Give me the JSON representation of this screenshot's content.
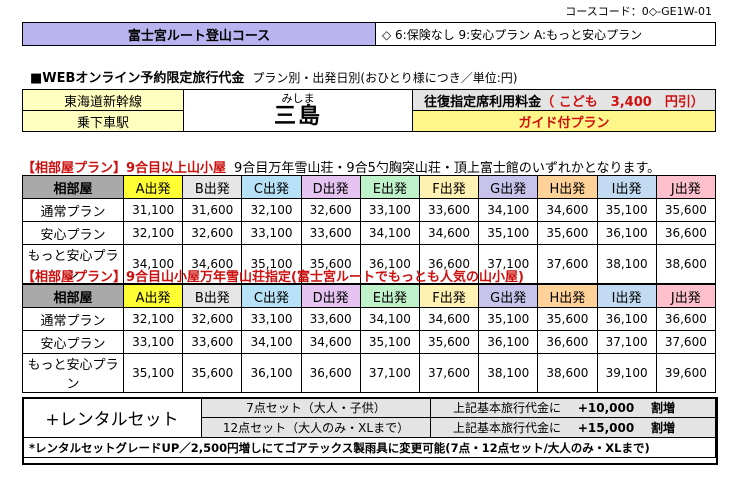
{
  "course_code": "コースコード：0◇-GE1W-01",
  "course_title": "富士宮ルート登山コース",
  "insurance_legend": "◇ 6:保険なし 9:安心プラン A:もっと安心プラン",
  "headline": "■WEBオンライン予約限定旅行代金",
  "headline_sub": "プラン別・出発日別(おひとり様につき／単位:円)",
  "station": {
    "line_label": "東海道新幹線",
    "board_label": "乗下車駅",
    "station_kana": "みしま",
    "station_name": "三島",
    "fare_label": "往復指定席利用料金",
    "child_fare": "（ こども　3,400　円引）",
    "guide_label": "ガイド付プラン"
  },
  "colors": {
    "A": "#ffff33",
    "B": "#e6e6e6",
    "C": "#b7e1f7",
    "D": "#e5c4f2",
    "E": "#c0f2c9",
    "F": "#fff2b3",
    "G": "#c7c3eb",
    "H": "#ffd29a",
    "I": "#c2dbf2",
    "J": "#ffc0cd"
  },
  "departures": [
    "A出発",
    "B出発",
    "C出発",
    "D出発",
    "E出発",
    "F出発",
    "G出発",
    "H出発",
    "I出発",
    "J出発"
  ],
  "section1": {
    "title": "【相部屋プラン】9合目以上山小屋",
    "note": "9合目万年雪山荘・9合5勺胸突山荘・頂上富士館のいずれかとなります。",
    "header": "相部屋",
    "rows": [
      {
        "label": "通常プラン",
        "values": [
          "31,100",
          "31,600",
          "32,100",
          "32,600",
          "33,100",
          "33,600",
          "34,100",
          "34,600",
          "35,100",
          "35,600"
        ]
      },
      {
        "label": "安心プラン",
        "values": [
          "32,100",
          "32,600",
          "33,100",
          "33,600",
          "34,100",
          "34,600",
          "35,100",
          "35,600",
          "36,100",
          "36,600"
        ]
      },
      {
        "label": "もっと安心プラン",
        "values": [
          "34,100",
          "34,600",
          "35,100",
          "35,600",
          "36,100",
          "36,600",
          "37,100",
          "37,600",
          "38,100",
          "38,600"
        ]
      }
    ]
  },
  "section2": {
    "title": "【相部屋プラン】9合目山小屋万年雪山荘指定(富士宮ルートでもっとも人気の山小屋)",
    "header": "相部屋",
    "rows": [
      {
        "label": "通常プラン",
        "values": [
          "32,100",
          "32,600",
          "33,100",
          "33,600",
          "34,100",
          "34,600",
          "35,100",
          "35,600",
          "36,100",
          "36,600"
        ]
      },
      {
        "label": "安心プラン",
        "values": [
          "33,100",
          "33,600",
          "34,100",
          "34,600",
          "35,100",
          "35,600",
          "36,100",
          "36,600",
          "37,100",
          "37,600"
        ]
      },
      {
        "label": "もっと安心プラン",
        "values": [
          "35,100",
          "35,600",
          "36,100",
          "36,600",
          "37,100",
          "37,600",
          "38,100",
          "38,600",
          "39,100",
          "39,600"
        ]
      }
    ]
  },
  "rental": {
    "label": "+レンタルセット",
    "rows": [
      {
        "set": "7点セット（大人・子供）",
        "base": "上記基本旅行代金に",
        "amount": "+10,000",
        "unit": "割増"
      },
      {
        "set": "12点セット（大人のみ・XLまで）",
        "base": "上記基本旅行代金に",
        "amount": "+15,000",
        "unit": "割増"
      }
    ],
    "note": "*レンタルセットグレードUP／2,500円増しにてゴアテックス製雨具に変更可能(7点・12点セット/大人のみ・XLまで)"
  }
}
